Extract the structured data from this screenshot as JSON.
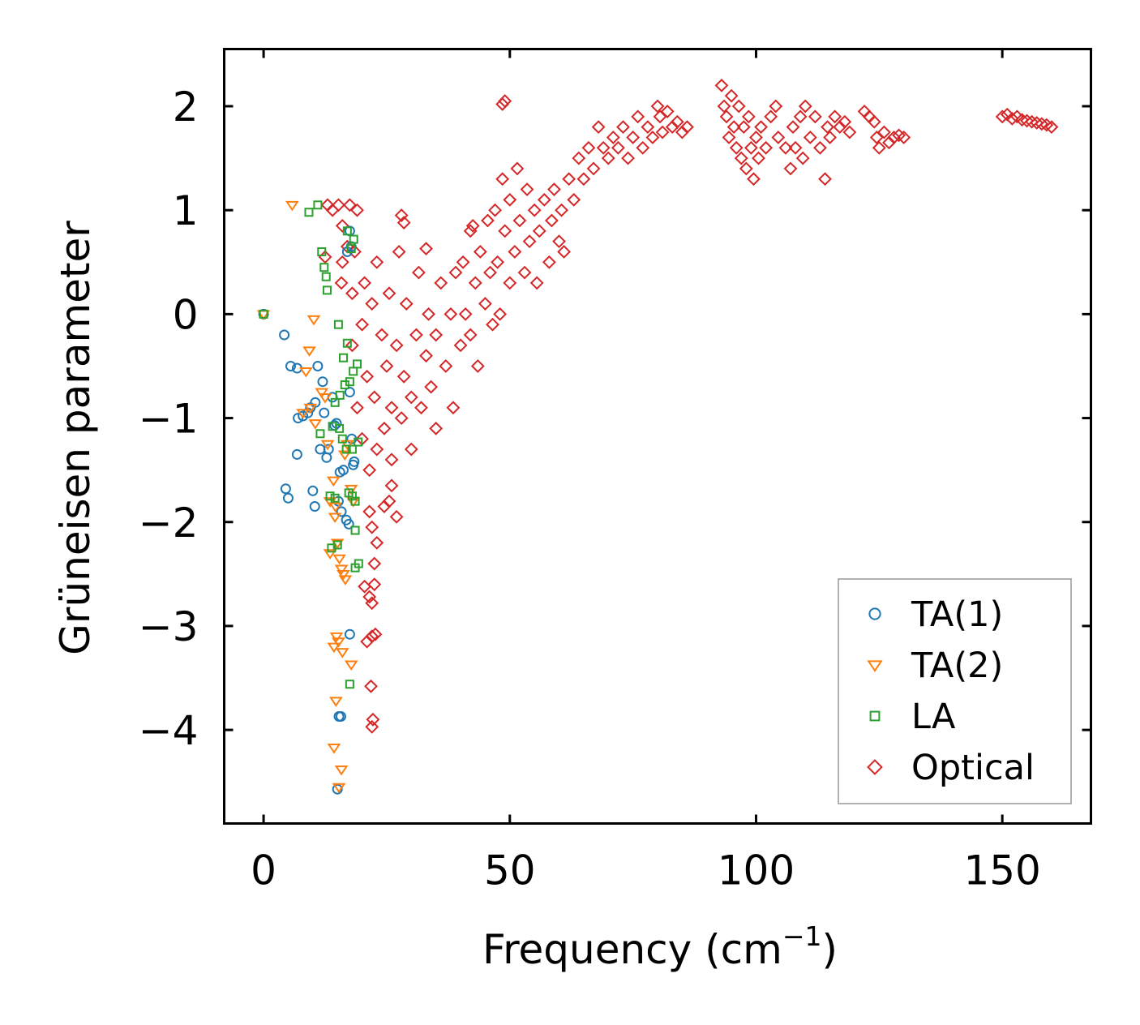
{
  "chart_data": {
    "type": "scatter",
    "title": "",
    "xlabel": "Frequency (cm",
    "xlabel_sup": "−1",
    "xlabel_end": ")",
    "ylabel": "Grüneisen parameter",
    "xlim": [
      -8,
      168
    ],
    "ylim": [
      -4.9,
      2.55
    ],
    "xticks": [
      0,
      50,
      100,
      150
    ],
    "xtick_labels": [
      "0",
      "50",
      "100",
      "150"
    ],
    "yticks": [
      2,
      1,
      0,
      -1,
      -2,
      -3,
      -4
    ],
    "ytick_labels": [
      "2",
      "1",
      "0",
      "−1",
      "−2",
      "−3",
      "−4"
    ],
    "legend_position": "lower-right",
    "series": [
      {
        "name": "TA(1)",
        "marker": "circle",
        "color": "#1f77b4",
        "points": [
          [
            0,
            0.0
          ],
          [
            4.2,
            -0.2
          ],
          [
            5.5,
            -0.5
          ],
          [
            6.8,
            -0.52
          ],
          [
            7.0,
            -1.0
          ],
          [
            8.0,
            -0.98
          ],
          [
            9.0,
            -0.95
          ],
          [
            9.5,
            -0.9
          ],
          [
            10.5,
            -0.85
          ],
          [
            11.0,
            -0.5
          ],
          [
            11.5,
            -1.3
          ],
          [
            12.0,
            -0.65
          ],
          [
            12.3,
            -0.95
          ],
          [
            12.8,
            -1.38
          ],
          [
            13.2,
            -1.3
          ],
          [
            14.0,
            -0.8
          ],
          [
            14.4,
            -1.07
          ],
          [
            14.8,
            -1.05
          ],
          [
            15.2,
            -1.8
          ],
          [
            15.5,
            -1.52
          ],
          [
            15.8,
            -1.9
          ],
          [
            16.2,
            -1.5
          ],
          [
            16.8,
            -1.98
          ],
          [
            17.3,
            -2.02
          ],
          [
            17.5,
            -0.75
          ],
          [
            17.9,
            -1.2
          ],
          [
            18.2,
            -1.45
          ],
          [
            18.4,
            -1.42
          ],
          [
            17.5,
            0.8
          ],
          [
            17.8,
            0.65
          ],
          [
            17.0,
            0.6
          ],
          [
            4.5,
            -1.68
          ],
          [
            5.0,
            -1.77
          ],
          [
            6.8,
            -1.35
          ],
          [
            10.0,
            -1.7
          ],
          [
            10.4,
            -1.85
          ],
          [
            15.3,
            -3.87
          ],
          [
            15.7,
            -3.87
          ],
          [
            17.5,
            -3.08
          ],
          [
            15.0,
            -4.57
          ]
        ]
      },
      {
        "name": "TA(2)",
        "marker": "triangle-down",
        "color": "#ff7f0e",
        "points": [
          [
            0,
            0.0
          ],
          [
            5.8,
            1.05
          ],
          [
            10.2,
            -0.05
          ],
          [
            9.3,
            -0.35
          ],
          [
            8.6,
            -0.55
          ],
          [
            8.0,
            -0.95
          ],
          [
            9.5,
            -0.9
          ],
          [
            10.5,
            -1.05
          ],
          [
            11.8,
            -0.75
          ],
          [
            12.5,
            -0.8
          ],
          [
            13.0,
            -1.25
          ],
          [
            13.5,
            -1.8
          ],
          [
            14.2,
            -1.6
          ],
          [
            14.5,
            -1.95
          ],
          [
            15.0,
            -2.2
          ],
          [
            15.4,
            -2.35
          ],
          [
            15.8,
            -2.45
          ],
          [
            16.2,
            -2.5
          ],
          [
            16.6,
            -2.55
          ],
          [
            13.5,
            -2.3
          ],
          [
            14.6,
            -1.85
          ],
          [
            16.5,
            -1.35
          ],
          [
            17.8,
            -1.68
          ],
          [
            18.2,
            -1.8
          ],
          [
            17.0,
            -1.25
          ],
          [
            14.8,
            -3.1
          ],
          [
            14.3,
            -3.2
          ],
          [
            15.2,
            -3.15
          ],
          [
            16.0,
            -3.25
          ],
          [
            17.8,
            -3.37
          ],
          [
            14.7,
            -3.72
          ],
          [
            14.3,
            -4.17
          ],
          [
            15.8,
            -4.38
          ],
          [
            15.3,
            -4.55
          ]
        ]
      },
      {
        "name": "LA",
        "marker": "square",
        "color": "#2ca02c",
        "points": [
          [
            0,
            0.0
          ],
          [
            9.2,
            0.98
          ],
          [
            11.0,
            1.05
          ],
          [
            11.8,
            0.6
          ],
          [
            12.3,
            0.45
          ],
          [
            12.7,
            0.36
          ],
          [
            12.9,
            0.23
          ],
          [
            15.2,
            -0.1
          ],
          [
            16.2,
            -0.42
          ],
          [
            17.0,
            -0.28
          ],
          [
            16.5,
            -0.68
          ],
          [
            17.5,
            -0.65
          ],
          [
            18.2,
            -0.55
          ],
          [
            19.0,
            -0.48
          ],
          [
            15.5,
            -0.78
          ],
          [
            14.5,
            -0.85
          ],
          [
            15.4,
            -1.1
          ],
          [
            16.0,
            -1.2
          ],
          [
            16.8,
            -1.3
          ],
          [
            18.0,
            -1.3
          ],
          [
            19.2,
            -1.23
          ],
          [
            13.5,
            -1.75
          ],
          [
            14.5,
            -1.77
          ],
          [
            17.3,
            -1.72
          ],
          [
            18.0,
            -1.75
          ],
          [
            18.6,
            -1.8
          ],
          [
            13.8,
            -2.25
          ],
          [
            15.0,
            -2.22
          ],
          [
            18.6,
            -2.08
          ],
          [
            18.6,
            -2.44
          ],
          [
            19.3,
            -2.4
          ],
          [
            17.8,
            0.63
          ],
          [
            18.3,
            0.72
          ],
          [
            17.0,
            0.8
          ],
          [
            17.5,
            -3.56
          ],
          [
            11.5,
            -1.15
          ],
          [
            14.0,
            -1.08
          ]
        ]
      },
      {
        "name": "Optical",
        "marker": "diamond",
        "color": "#d62728",
        "points": [
          [
            18,
            -0.3
          ],
          [
            19,
            -0.9
          ],
          [
            20,
            -1.2
          ],
          [
            20,
            -0.1
          ],
          [
            20.5,
            0.3
          ],
          [
            21,
            -0.6
          ],
          [
            21.5,
            -1.5
          ],
          [
            22,
            0.1
          ],
          [
            22.5,
            -0.8
          ],
          [
            23,
            -1.3
          ],
          [
            23,
            0.5
          ],
          [
            24,
            -0.2
          ],
          [
            24.5,
            -1.1
          ],
          [
            25,
            -0.5
          ],
          [
            25.5,
            0.2
          ],
          [
            26,
            -1.4
          ],
          [
            26,
            -0.9
          ],
          [
            27,
            -0.3
          ],
          [
            27.5,
            0.6
          ],
          [
            28,
            -1.0
          ],
          [
            28.5,
            -0.6
          ],
          [
            29,
            0.1
          ],
          [
            30,
            -0.8
          ],
          [
            30,
            -1.3
          ],
          [
            31,
            -0.2
          ],
          [
            31.5,
            0.4
          ],
          [
            32,
            -0.9
          ],
          [
            33,
            -0.4
          ],
          [
            33.5,
            0.0
          ],
          [
            34,
            -0.7
          ],
          [
            35,
            -0.2
          ],
          [
            35,
            -1.1
          ],
          [
            36,
            0.3
          ],
          [
            37,
            -0.5
          ],
          [
            38,
            0.0
          ],
          [
            38.5,
            -0.9
          ],
          [
            39,
            0.4
          ],
          [
            40,
            -0.3
          ],
          [
            40.5,
            0.5
          ],
          [
            41,
            0.0
          ],
          [
            42,
            -0.2
          ],
          [
            42,
            0.8
          ],
          [
            43,
            0.3
          ],
          [
            43.5,
            -0.5
          ],
          [
            44,
            0.6
          ],
          [
            45,
            0.1
          ],
          [
            45.5,
            0.9
          ],
          [
            46,
            0.4
          ],
          [
            46.5,
            -0.1
          ],
          [
            47,
            1.0
          ],
          [
            47.5,
            0.5
          ],
          [
            48,
            0.0
          ],
          [
            48.5,
            1.3
          ],
          [
            49,
            0.8
          ],
          [
            50,
            0.3
          ],
          [
            50,
            1.1
          ],
          [
            51,
            0.6
          ],
          [
            51.5,
            1.4
          ],
          [
            52,
            0.9
          ],
          [
            53,
            0.4
          ],
          [
            53.5,
            1.2
          ],
          [
            54,
            0.7
          ],
          [
            55,
            1.0
          ],
          [
            55.5,
            0.3
          ],
          [
            56,
            0.8
          ],
          [
            57,
            1.1
          ],
          [
            58,
            0.5
          ],
          [
            58.5,
            0.9
          ],
          [
            59,
            1.2
          ],
          [
            60,
            0.7
          ],
          [
            60.5,
            1.0
          ],
          [
            61,
            0.6
          ],
          [
            62,
            1.3
          ],
          [
            63,
            1.1
          ],
          [
            64,
            1.5
          ],
          [
            65,
            1.3
          ],
          [
            66,
            1.6
          ],
          [
            67,
            1.4
          ],
          [
            68,
            1.8
          ],
          [
            69,
            1.6
          ],
          [
            70,
            1.5
          ],
          [
            71,
            1.7
          ],
          [
            72,
            1.6
          ],
          [
            73,
            1.8
          ],
          [
            74,
            1.5
          ],
          [
            75,
            1.7
          ],
          [
            76,
            1.9
          ],
          [
            77,
            1.6
          ],
          [
            78,
            1.8
          ],
          [
            79,
            1.7
          ],
          [
            80,
            2.0
          ],
          [
            80.5,
            1.9
          ],
          [
            81,
            1.75
          ],
          [
            82,
            1.95
          ],
          [
            83,
            1.8
          ],
          [
            84,
            1.85
          ],
          [
            85,
            1.75
          ],
          [
            86,
            1.8
          ],
          [
            93,
            2.2
          ],
          [
            93.5,
            2.0
          ],
          [
            94,
            1.9
          ],
          [
            94.5,
            1.7
          ],
          [
            95,
            2.1
          ],
          [
            95.5,
            1.8
          ],
          [
            96,
            1.6
          ],
          [
            96.5,
            2.0
          ],
          [
            97,
            1.5
          ],
          [
            97.5,
            1.8
          ],
          [
            98,
            1.4
          ],
          [
            98.5,
            1.9
          ],
          [
            99,
            1.6
          ],
          [
            99.5,
            1.3
          ],
          [
            100,
            1.7
          ],
          [
            100.5,
            1.5
          ],
          [
            101,
            1.8
          ],
          [
            102,
            1.6
          ],
          [
            103,
            1.9
          ],
          [
            104,
            2.0
          ],
          [
            104.5,
            1.7
          ],
          [
            106,
            1.6
          ],
          [
            107,
            1.4
          ],
          [
            107.5,
            1.8
          ],
          [
            108,
            1.6
          ],
          [
            109,
            1.9
          ],
          [
            109.5,
            1.5
          ],
          [
            110,
            2.0
          ],
          [
            111,
            1.7
          ],
          [
            112,
            1.9
          ],
          [
            113,
            1.6
          ],
          [
            114,
            1.3
          ],
          [
            114.5,
            1.8
          ],
          [
            115,
            1.7
          ],
          [
            116,
            1.9
          ],
          [
            117,
            1.8
          ],
          [
            118,
            1.85
          ],
          [
            119,
            1.75
          ],
          [
            122,
            1.95
          ],
          [
            123,
            1.9
          ],
          [
            124,
            1.85
          ],
          [
            124.5,
            1.7
          ],
          [
            125,
            1.6
          ],
          [
            126,
            1.75
          ],
          [
            127,
            1.65
          ],
          [
            128,
            1.7
          ],
          [
            129,
            1.72
          ],
          [
            130,
            1.7
          ],
          [
            150,
            1.9
          ],
          [
            151,
            1.92
          ],
          [
            152,
            1.88
          ],
          [
            153,
            1.9
          ],
          [
            154,
            1.87
          ],
          [
            155,
            1.86
          ],
          [
            156,
            1.85
          ],
          [
            157,
            1.84
          ],
          [
            158,
            1.83
          ],
          [
            159,
            1.82
          ],
          [
            160,
            1.8
          ],
          [
            48.5,
            2.02
          ],
          [
            49,
            2.05
          ],
          [
            19,
            1.0
          ],
          [
            17.5,
            1.05
          ],
          [
            15.2,
            1.05
          ],
          [
            16,
            0.85
          ],
          [
            17,
            0.65
          ],
          [
            18.5,
            0.6
          ],
          [
            16,
            0.5
          ],
          [
            15.8,
            0.3
          ],
          [
            18,
            0.2
          ],
          [
            28,
            0.95
          ],
          [
            28.5,
            0.88
          ],
          [
            33,
            0.63
          ],
          [
            42.5,
            0.85
          ],
          [
            21.5,
            -1.9
          ],
          [
            22,
            -2.05
          ],
          [
            23,
            -2.2
          ],
          [
            22.5,
            -2.4
          ],
          [
            24.5,
            -1.85
          ],
          [
            25.5,
            -1.8
          ],
          [
            27,
            -1.95
          ],
          [
            26,
            -1.65
          ],
          [
            20.5,
            -2.62
          ],
          [
            21.5,
            -2.72
          ],
          [
            22,
            -2.78
          ],
          [
            22.5,
            -2.6
          ],
          [
            21,
            -3.15
          ],
          [
            22,
            -3.1
          ],
          [
            22.7,
            -3.08
          ],
          [
            21.8,
            -3.58
          ],
          [
            22.2,
            -3.9
          ],
          [
            22,
            -3.97
          ],
          [
            13,
            1.05
          ],
          [
            14,
            1.0
          ],
          [
            12.5,
            0.55
          ]
        ]
      }
    ]
  }
}
